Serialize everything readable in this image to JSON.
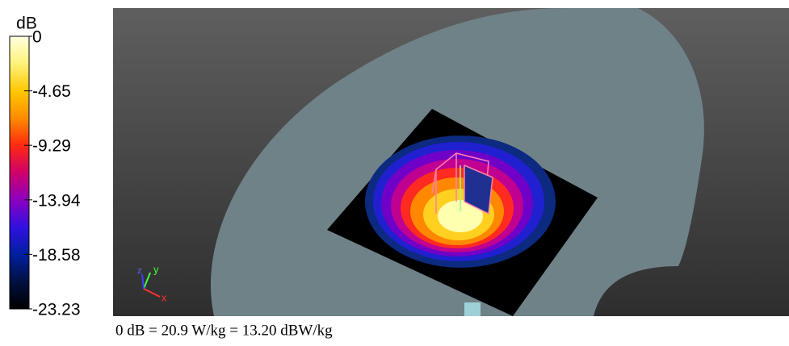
{
  "colorbar": {
    "label": "dB",
    "lim": [
      -23.23,
      0
    ],
    "ticks": [
      0,
      -4.65,
      -9.29,
      -13.94,
      -18.58,
      -23.23
    ]
  },
  "axes_triad": {
    "x": "x",
    "y": "y",
    "z": "z"
  },
  "caption": "0 dB = 20.9 W/kg = 13.20 dBW/kg"
}
